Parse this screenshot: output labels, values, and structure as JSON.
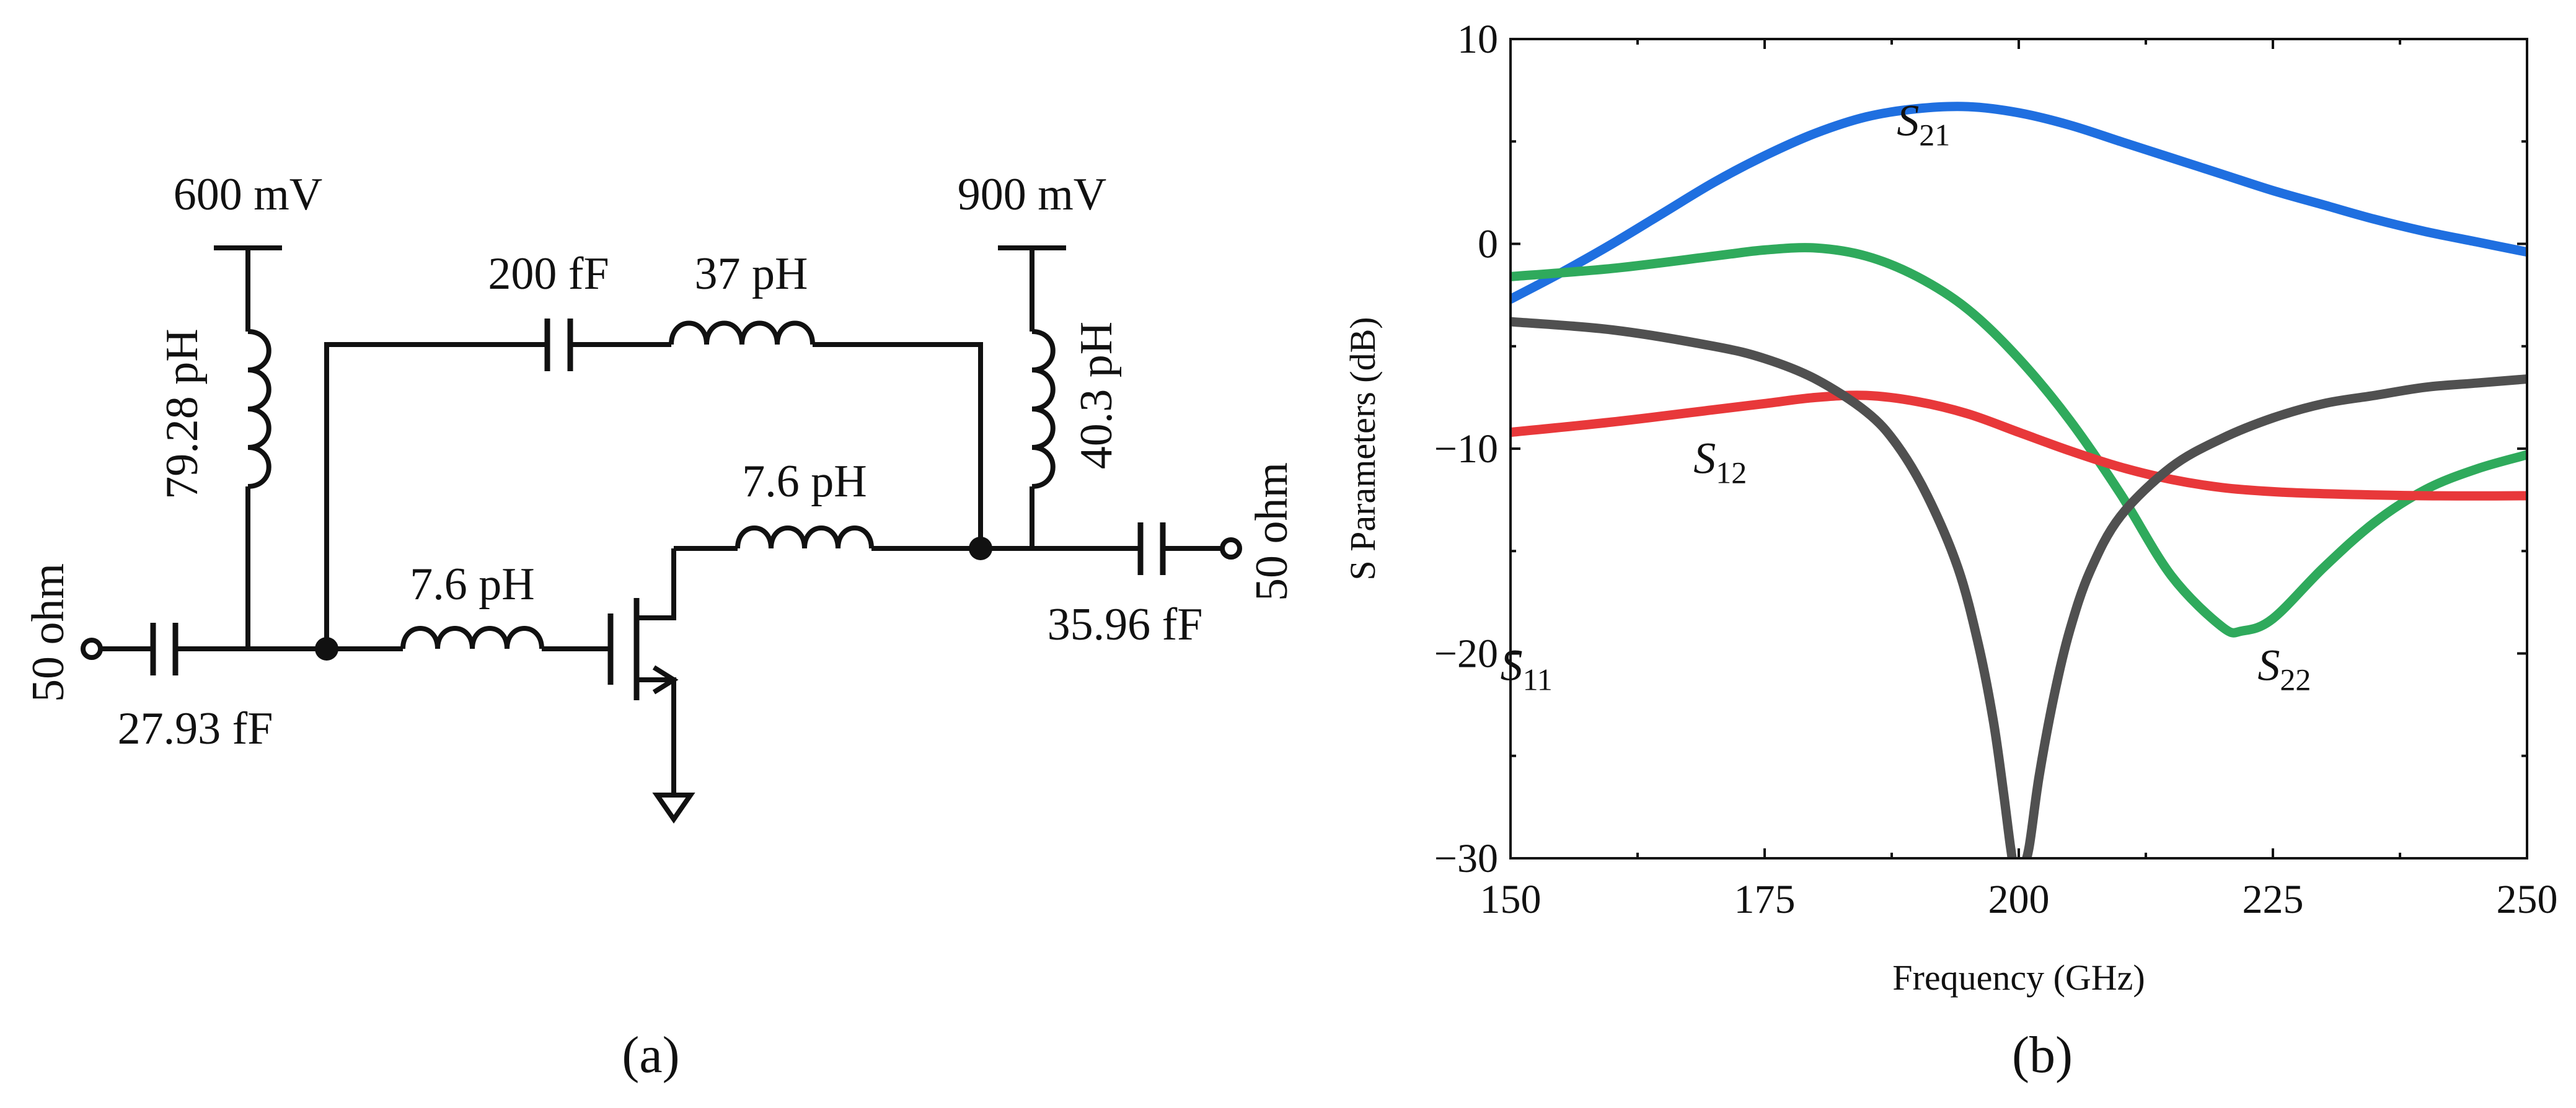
{
  "circuit": {
    "caption": "(a)",
    "vdd_gate": "600 mV",
    "vdd_drain": "900 mV",
    "l_gate_bias": "79.28 pH",
    "l_drain_bias": "40.3 pH",
    "c_feedback": "200 fF",
    "l_feedback": "37 pH",
    "l_gate_series": "7.6 pH",
    "l_drain_series": "7.6 pH",
    "c_input": "27.93 fF",
    "c_output": "35.96 fF",
    "port_in": "50 ohm",
    "port_out": "50 ohm"
  },
  "colors": {
    "S11": "#505050",
    "S12": "#e8383a",
    "S21": "#1f6fe0",
    "S22": "#2faa5c"
  },
  "chart_data": {
    "type": "line",
    "caption": "(b)",
    "xlabel": "Frequency (GHz)",
    "ylabel": "S Parameters (dB)",
    "xlim": [
      150,
      250
    ],
    "ylim": [
      -30,
      10
    ],
    "xticks": [
      150,
      175,
      200,
      225,
      250
    ],
    "yticks": [
      -30,
      -20,
      -10,
      0,
      10
    ],
    "ytick_labels": [
      "−30",
      "−20",
      "−10",
      "0",
      "10"
    ],
    "series": [
      {
        "name": "S21",
        "base": "S",
        "sub": "21",
        "x": [
          150,
          155,
          160,
          165,
          170,
          175,
          180,
          185,
          190,
          195,
          200,
          205,
          210,
          215,
          220,
          225,
          230,
          235,
          240,
          245,
          250
        ],
        "y": [
          -2.7,
          -1.4,
          0.0,
          1.5,
          3.0,
          4.3,
          5.4,
          6.2,
          6.6,
          6.7,
          6.4,
          5.8,
          5.0,
          4.2,
          3.4,
          2.6,
          1.9,
          1.2,
          0.6,
          0.1,
          -0.4
        ]
      },
      {
        "name": "S22",
        "base": "S",
        "sub": "22",
        "x": [
          150,
          160,
          170,
          175,
          180,
          185,
          190,
          195,
          200,
          205,
          210,
          215,
          220,
          222,
          225,
          230,
          235,
          240,
          245,
          250
        ],
        "y": [
          -1.6,
          -1.2,
          -0.6,
          -0.3,
          -0.2,
          -0.6,
          -1.6,
          -3.2,
          -5.6,
          -8.6,
          -12.2,
          -16.2,
          -18.7,
          -18.9,
          -18.3,
          -15.8,
          -13.6,
          -12.0,
          -11.0,
          -10.3
        ]
      },
      {
        "name": "S12",
        "base": "S",
        "sub": "12",
        "x": [
          150,
          160,
          170,
          175,
          180,
          185,
          190,
          195,
          200,
          205,
          210,
          215,
          220,
          225,
          230,
          240,
          250
        ],
        "y": [
          -9.2,
          -8.7,
          -8.1,
          -7.8,
          -7.5,
          -7.4,
          -7.7,
          -8.3,
          -9.2,
          -10.1,
          -10.9,
          -11.5,
          -11.9,
          -12.1,
          -12.2,
          -12.3,
          -12.3
        ]
      },
      {
        "name": "S11",
        "base": "S",
        "sub": "11",
        "x": [
          150,
          160,
          170,
          175,
          180,
          185,
          188,
          191,
          194,
          196,
          197.5,
          198.5,
          199.2,
          199.6,
          200.3,
          201,
          202,
          203.5,
          205,
          207,
          210,
          215,
          220,
          225,
          230,
          235,
          240,
          245,
          250
        ],
        "y": [
          -3.8,
          -4.2,
          -5.0,
          -5.6,
          -6.6,
          -8.2,
          -9.8,
          -12.3,
          -15.8,
          -19.5,
          -23.3,
          -26.8,
          -29.5,
          -30.5,
          -30.5,
          -29.5,
          -26.0,
          -22.0,
          -18.9,
          -16.0,
          -13.3,
          -10.9,
          -9.5,
          -8.5,
          -7.8,
          -7.4,
          -7.0,
          -6.8,
          -6.6
        ]
      }
    ],
    "labels": [
      {
        "series": "S21",
        "base": "S",
        "sub": "21",
        "x": 188,
        "y": 5.3
      },
      {
        "series": "S12",
        "base": "S",
        "sub": "12",
        "x": 168,
        "y": -11.2
      },
      {
        "series": "S11",
        "base": "S",
        "sub": "11",
        "x": 149,
        "y": -21.3
      },
      {
        "series": "S22",
        "base": "S",
        "sub": "22",
        "x": 223.5,
        "y": -21.3
      }
    ]
  }
}
